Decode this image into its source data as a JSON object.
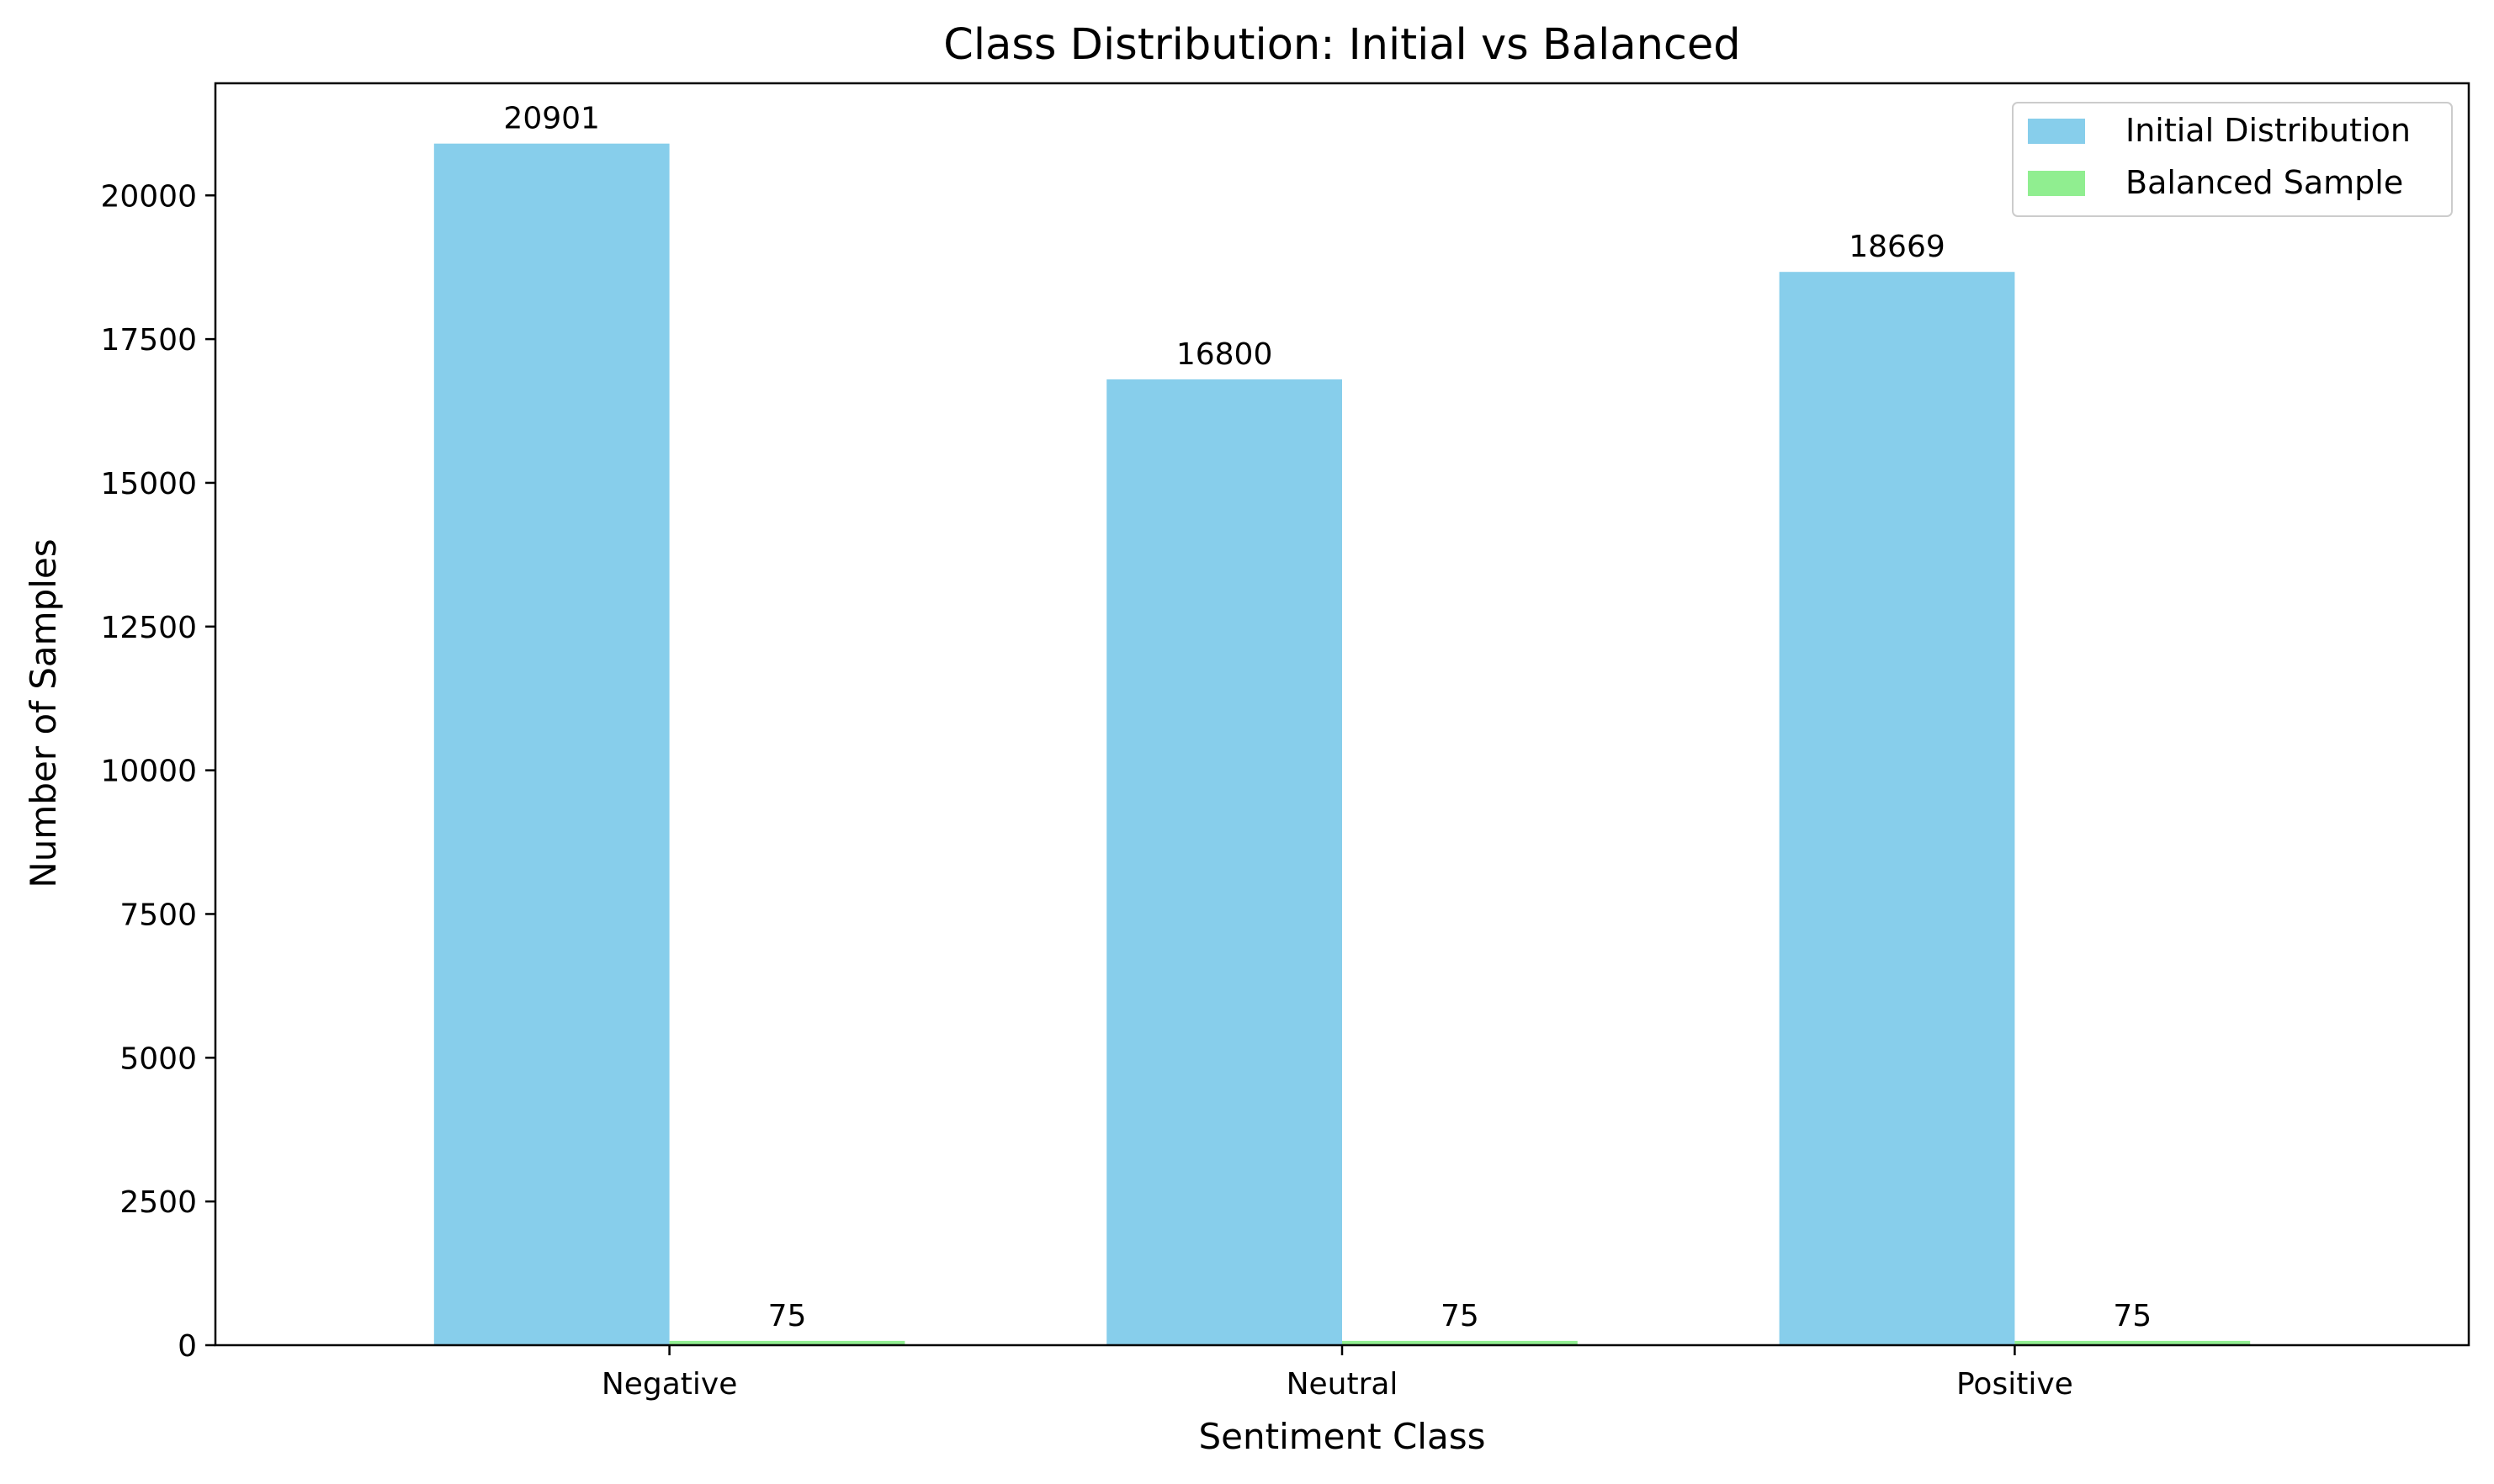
{
  "chart_data": {
    "type": "bar",
    "title": "Class Distribution: Initial vs Balanced",
    "xlabel": "Sentiment Class",
    "ylabel": "Number of Samples",
    "categories": [
      "Negative",
      "Neutral",
      "Positive"
    ],
    "series": [
      {
        "name": "Initial Distribution",
        "values": [
          20901,
          16800,
          18669
        ],
        "color": "#87CEEB"
      },
      {
        "name": "Balanced Sample",
        "values": [
          75,
          75,
          75
        ],
        "color": "#90EE90"
      }
    ],
    "ylim": [
      0,
      21950
    ],
    "yticks": [
      0,
      2500,
      5000,
      7500,
      10000,
      12500,
      15000,
      17500,
      20000
    ],
    "grid": false,
    "legend_position": "top-right",
    "data_labels": true
  }
}
